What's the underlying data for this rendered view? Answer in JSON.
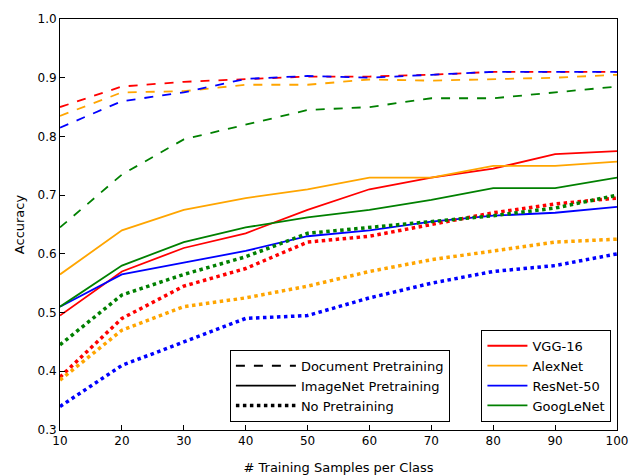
{
  "chart_data": {
    "type": "line",
    "x_label": "# Training Samples per Class",
    "y_label": "Accuracy",
    "x": [
      10,
      20,
      30,
      40,
      50,
      60,
      70,
      80,
      90,
      100
    ],
    "xlim": [
      10,
      100
    ],
    "xticks": [
      10,
      20,
      30,
      40,
      50,
      60,
      70,
      80,
      90,
      100
    ],
    "ylim": [
      0.3,
      1.0
    ],
    "yticks": [
      0.3,
      0.4,
      0.5,
      0.6,
      0.7,
      0.8,
      0.9,
      {
        "value": 1.0,
        "label": "1.0"
      }
    ],
    "grid": false,
    "legend": "lower right",
    "models": [
      {
        "name": "VGG-16",
        "color": "#ff0000"
      },
      {
        "name": "AlexNet",
        "color": "#ffa500"
      },
      {
        "name": "ResNet-50",
        "color": "#0000ff"
      },
      {
        "name": "GoogLeNet",
        "color": "#008000"
      }
    ],
    "pretraining": [
      {
        "name": "Document Pretraining",
        "line_style": "dashed"
      },
      {
        "name": "ImageNet Pretraining",
        "line_style": "solid"
      },
      {
        "name": "No Pretraining",
        "line_style": "dotted"
      }
    ],
    "series": [
      {
        "model": "VGG-16",
        "pretraining": "Document Pretraining",
        "values": [
          0.85,
          0.885,
          0.893,
          0.898,
          0.902,
          0.902,
          0.905,
          0.91,
          0.91,
          0.91
        ]
      },
      {
        "model": "AlexNet",
        "pretraining": "Document Pretraining",
        "values": [
          0.835,
          0.875,
          0.877,
          0.888,
          0.888,
          0.897,
          0.895,
          0.898,
          0.9,
          0.905
        ]
      },
      {
        "model": "ResNet-50",
        "pretraining": "Document Pretraining",
        "values": [
          0.815,
          0.86,
          0.875,
          0.898,
          0.903,
          0.9,
          0.905,
          0.91,
          0.91,
          0.91
        ]
      },
      {
        "model": "GoogLeNet",
        "pretraining": "Document Pretraining",
        "values": [
          0.645,
          0.735,
          0.795,
          0.82,
          0.845,
          0.85,
          0.865,
          0.865,
          0.875,
          0.885
        ]
      },
      {
        "model": "VGG-16",
        "pretraining": "ImageNet Pretraining",
        "values": [
          0.495,
          0.57,
          0.61,
          0.635,
          0.675,
          0.71,
          0.73,
          0.745,
          0.77,
          0.775
        ]
      },
      {
        "model": "AlexNet",
        "pretraining": "ImageNet Pretraining",
        "values": [
          0.565,
          0.64,
          0.675,
          0.695,
          0.71,
          0.73,
          0.73,
          0.75,
          0.75,
          0.757
        ]
      },
      {
        "model": "ResNet-50",
        "pretraining": "ImageNet Pretraining",
        "values": [
          0.51,
          0.565,
          0.585,
          0.605,
          0.63,
          0.64,
          0.655,
          0.665,
          0.67,
          0.68
        ]
      },
      {
        "model": "GoogLeNet",
        "pretraining": "ImageNet Pretraining",
        "values": [
          0.51,
          0.58,
          0.62,
          0.645,
          0.662,
          0.675,
          0.692,
          0.712,
          0.712,
          0.73
        ]
      },
      {
        "model": "VGG-16",
        "pretraining": "No Pretraining",
        "values": [
          0.39,
          0.49,
          0.545,
          0.575,
          0.62,
          0.63,
          0.65,
          0.67,
          0.685,
          0.695
        ]
      },
      {
        "model": "AlexNet",
        "pretraining": "No Pretraining",
        "values": [
          0.385,
          0.47,
          0.51,
          0.525,
          0.545,
          0.57,
          0.59,
          0.605,
          0.62,
          0.625
        ]
      },
      {
        "model": "ResNet-50",
        "pretraining": "No Pretraining",
        "values": [
          0.34,
          0.41,
          0.45,
          0.49,
          0.495,
          0.525,
          0.55,
          0.57,
          0.58,
          0.6
        ]
      },
      {
        "model": "GoogLeNet",
        "pretraining": "No Pretraining",
        "values": [
          0.445,
          0.53,
          0.565,
          0.595,
          0.635,
          0.645,
          0.655,
          0.665,
          0.678,
          0.7
        ]
      }
    ]
  }
}
